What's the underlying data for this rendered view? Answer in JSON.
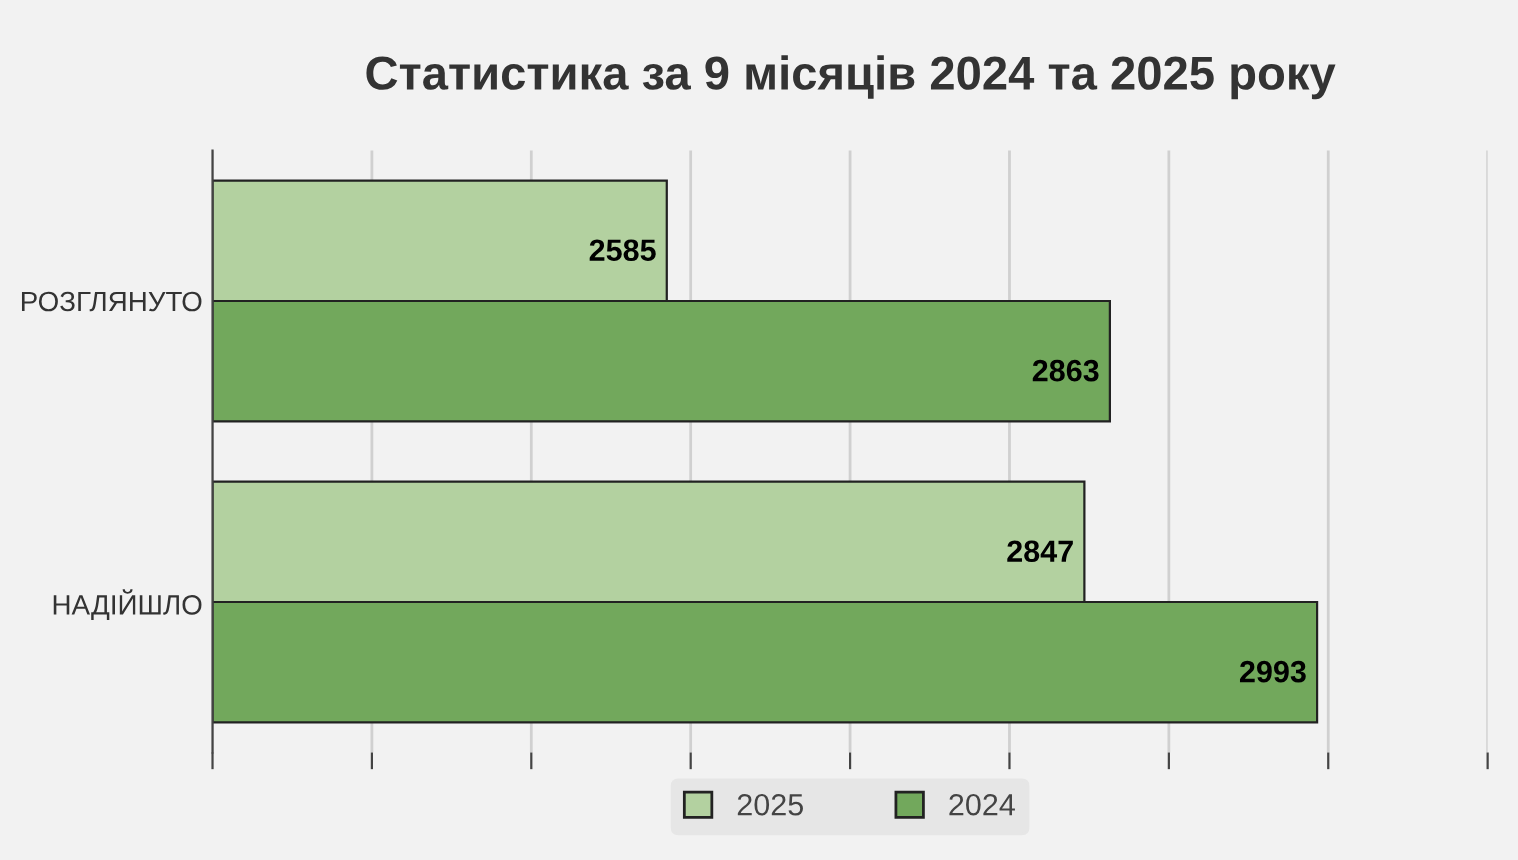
{
  "chart_data": {
    "type": "bar",
    "orientation": "horizontal",
    "title": "Статистика за 9 місяців 2024 та 2025 року",
    "categories": [
      "РОЗГЛЯНУТО",
      "НАДІЙШЛО"
    ],
    "series": [
      {
        "name": "2025",
        "color": "#b3d1a0",
        "values": [
          2585,
          2847
        ]
      },
      {
        "name": "2024",
        "color": "#72a85c",
        "values": [
          2863,
          2993
        ]
      }
    ],
    "xlim": [
      2300,
      3100
    ],
    "xticks": [
      {
        "value": 2300,
        "label": null
      },
      {
        "value": 2400,
        "label": null
      },
      {
        "value": 2500,
        "label": null
      },
      {
        "value": 2600,
        "label": null
      },
      {
        "value": 2700,
        "label": null
      },
      {
        "value": 2800,
        "label": null
      },
      {
        "value": 2900,
        "label": null
      },
      {
        "value": 3000,
        "label": null
      },
      {
        "value": 3100,
        "label": null
      }
    ],
    "tick_labels": "y",
    "grid": "x",
    "legend": "bottom",
    "data_labels": true
  }
}
